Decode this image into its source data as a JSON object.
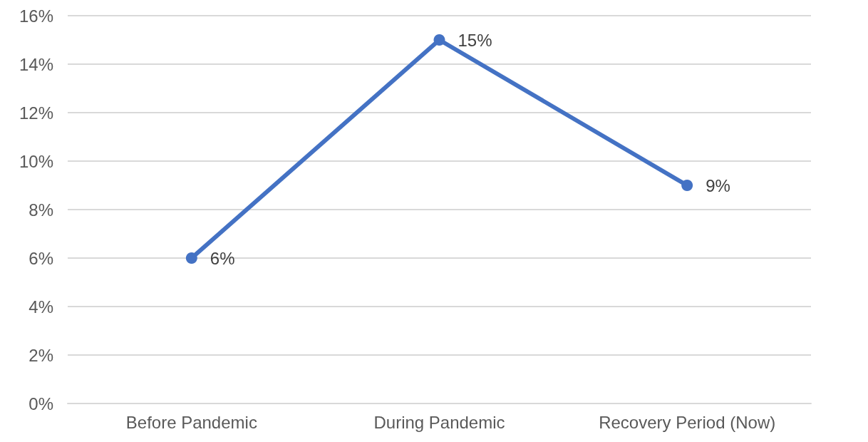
{
  "chart_data": {
    "type": "line",
    "categories": [
      "Before Pandemic",
      "During Pandemic",
      "Recovery Period (Now)"
    ],
    "series": [
      {
        "color": "#4472c4",
        "values": [
          6,
          15,
          9
        ],
        "value_labels": [
          "6%",
          "15%",
          "9%"
        ]
      }
    ],
    "ylim": [
      0,
      16
    ],
    "yticks": [
      {
        "value": 0,
        "label": "0%"
      },
      {
        "value": 2,
        "label": "2%"
      },
      {
        "value": 4,
        "label": "4%"
      },
      {
        "value": 6,
        "label": "6%"
      },
      {
        "value": 8,
        "label": "8%"
      },
      {
        "value": 10,
        "label": "10%"
      },
      {
        "value": 12,
        "label": "12%"
      },
      {
        "value": 14,
        "label": "14%"
      },
      {
        "value": 16,
        "label": "16%"
      }
    ],
    "grid": "y",
    "marker": "circle",
    "line_style": "solid"
  }
}
